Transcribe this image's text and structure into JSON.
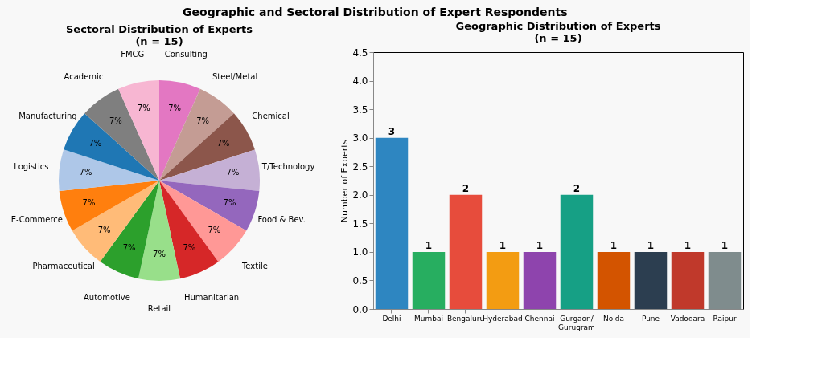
{
  "chart_data": [
    {
      "type": "pie",
      "title": "Sectoral Distribution of Experts",
      "subtitle": "(n = 15)",
      "categories": [
        "Consulting",
        "Steel/Metal",
        "Chemical",
        "IT/Technology",
        "Food & Bev.",
        "Textile",
        "Humanitarian",
        "Retail",
        "Automotive",
        "Pharmaceutical",
        "E-Commerce",
        "Logistics",
        "Manufacturing",
        "Academic",
        "FMCG"
      ],
      "values": [
        6.667,
        6.667,
        6.667,
        6.667,
        6.667,
        6.667,
        6.667,
        6.667,
        6.667,
        6.667,
        6.667,
        6.667,
        6.667,
        6.666,
        6.666
      ],
      "value_labels": [
        "7%",
        "7%",
        "7%",
        "7%",
        "7%",
        "7%",
        "7%",
        "7%",
        "7%",
        "7%",
        "7%",
        "7%",
        "7%",
        "7%",
        "7%"
      ],
      "colors": [
        "#e377c2",
        "#c49c94",
        "#8c564b",
        "#c5b0d5",
        "#9467bd",
        "#ff9896",
        "#d62728",
        "#98df8a",
        "#2ca02c",
        "#ffbb78",
        "#ff7f0e",
        "#aec7e8",
        "#1f77b4",
        "#7f7f7f",
        "#f7b6d2"
      ],
      "annotations": [
        "Geographic and Sectoral Distribution of Expert Respondents"
      ],
      "legend": false
    },
    {
      "type": "bar",
      "title": "Geographic Distribution of Experts",
      "subtitle": "(n = 15)",
      "ylabel": "Number of Experts",
      "categories": [
        "Delhi",
        "Mumbai",
        "Bengaluru",
        "Hyderabad",
        "Chennai",
        "Gurgaon/\nGurugram",
        "Noida",
        "Pune",
        "Vadodara",
        "Raipur"
      ],
      "values": [
        3,
        1,
        2,
        1,
        1,
        2,
        1,
        1,
        1,
        1
      ],
      "colors": [
        "#2e86c1",
        "#27ae60",
        "#e74c3c",
        "#f39c12",
        "#8e44ad",
        "#16a085",
        "#d35400",
        "#2c3e50",
        "#c0392b",
        "#7f8c8d"
      ],
      "ylim": [
        0,
        4.5
      ],
      "yticks": [
        {
          "value": 0,
          "label": "0.0"
        },
        0.5,
        {
          "value": 1,
          "label": "1.0"
        },
        1.5,
        {
          "value": 2,
          "label": "2.0"
        },
        2.5,
        {
          "value": 3,
          "label": "3.0"
        },
        3.5,
        {
          "value": 4,
          "label": "4.0"
        },
        4.5
      ],
      "data_labels": true,
      "grid": false,
      "legend": false
    }
  ]
}
